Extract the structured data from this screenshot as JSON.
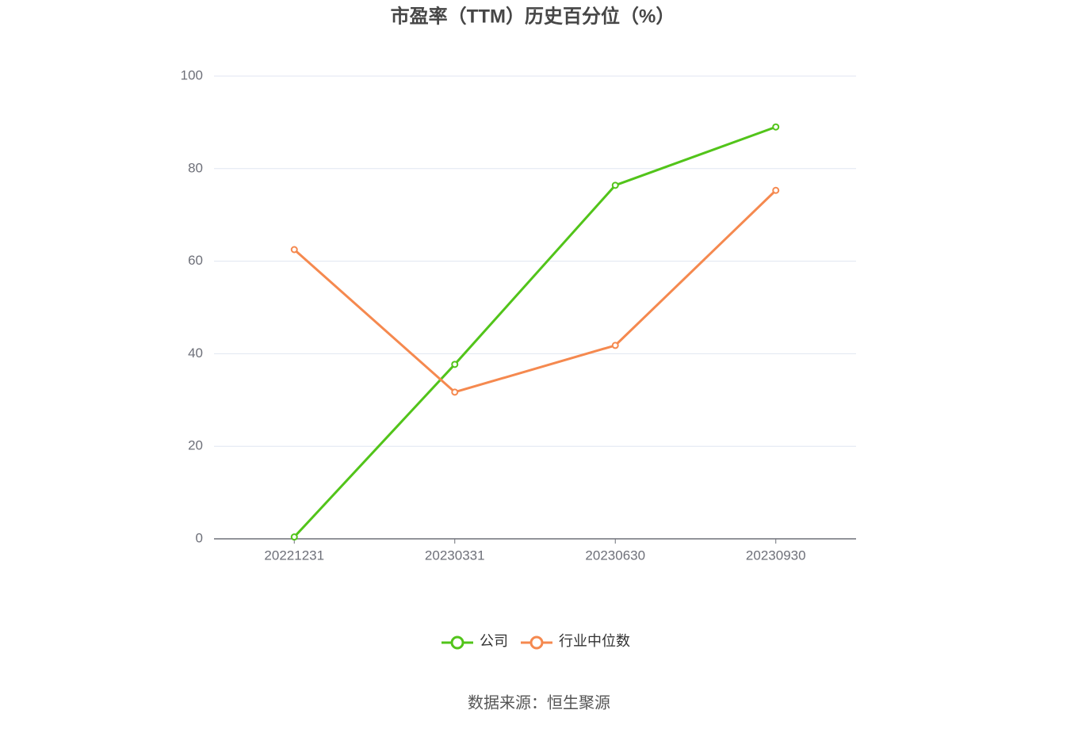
{
  "chart_data": {
    "type": "line",
    "title": "市盈率（TTM）历史百分位（%）",
    "categories": [
      "20221231",
      "20230331",
      "20230630",
      "20230930"
    ],
    "series": [
      {
        "name": "公司",
        "color": "#52c41a",
        "values": [
          0.4,
          37.7,
          76.4,
          89.0
        ]
      },
      {
        "name": "行业中位数",
        "color": "#f5894f",
        "values": [
          62.5,
          31.7,
          41.8,
          75.3
        ]
      }
    ],
    "ylim": [
      0,
      100
    ],
    "yticks": [
      0,
      20,
      40,
      60,
      80,
      100
    ],
    "grid": true,
    "legend": "bottom",
    "source": "数据来源：恒生聚源"
  }
}
